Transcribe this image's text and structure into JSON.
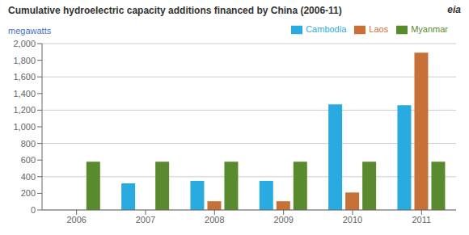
{
  "chart_data": {
    "type": "bar",
    "title": "Cumulative hydroelectric capacity additions financed by China (2006-11)",
    "ylabel": "megawatts",
    "annotations": [
      "eia"
    ],
    "categories": [
      "2006",
      "2007",
      "2008",
      "2009",
      "2010",
      "2011"
    ],
    "series": [
      {
        "name": "Cambodia",
        "color": "#29ABE2",
        "values": [
          0,
          320,
          350,
          350,
          1270,
          1260
        ]
      },
      {
        "name": "Laos",
        "color": "#C87137",
        "values": [
          0,
          0,
          105,
          105,
          210,
          1890
        ]
      },
      {
        "name": "Myanmar",
        "color": "#5A8A2E",
        "values": [
          580,
          580,
          580,
          580,
          580,
          580
        ]
      }
    ],
    "ylim": [
      0,
      2000
    ],
    "yticks": [
      0,
      200,
      400,
      600,
      800,
      {
        "value": 1000,
        "label": "1,000"
      },
      {
        "value": 1200,
        "label": "1,200"
      },
      {
        "value": 1400,
        "label": "1,400"
      },
      {
        "value": 1600,
        "label": "1,600"
      },
      {
        "value": 1800,
        "label": "1,800"
      },
      {
        "value": 2000,
        "label": "2,000"
      }
    ],
    "grid": true,
    "legend": "top"
  }
}
